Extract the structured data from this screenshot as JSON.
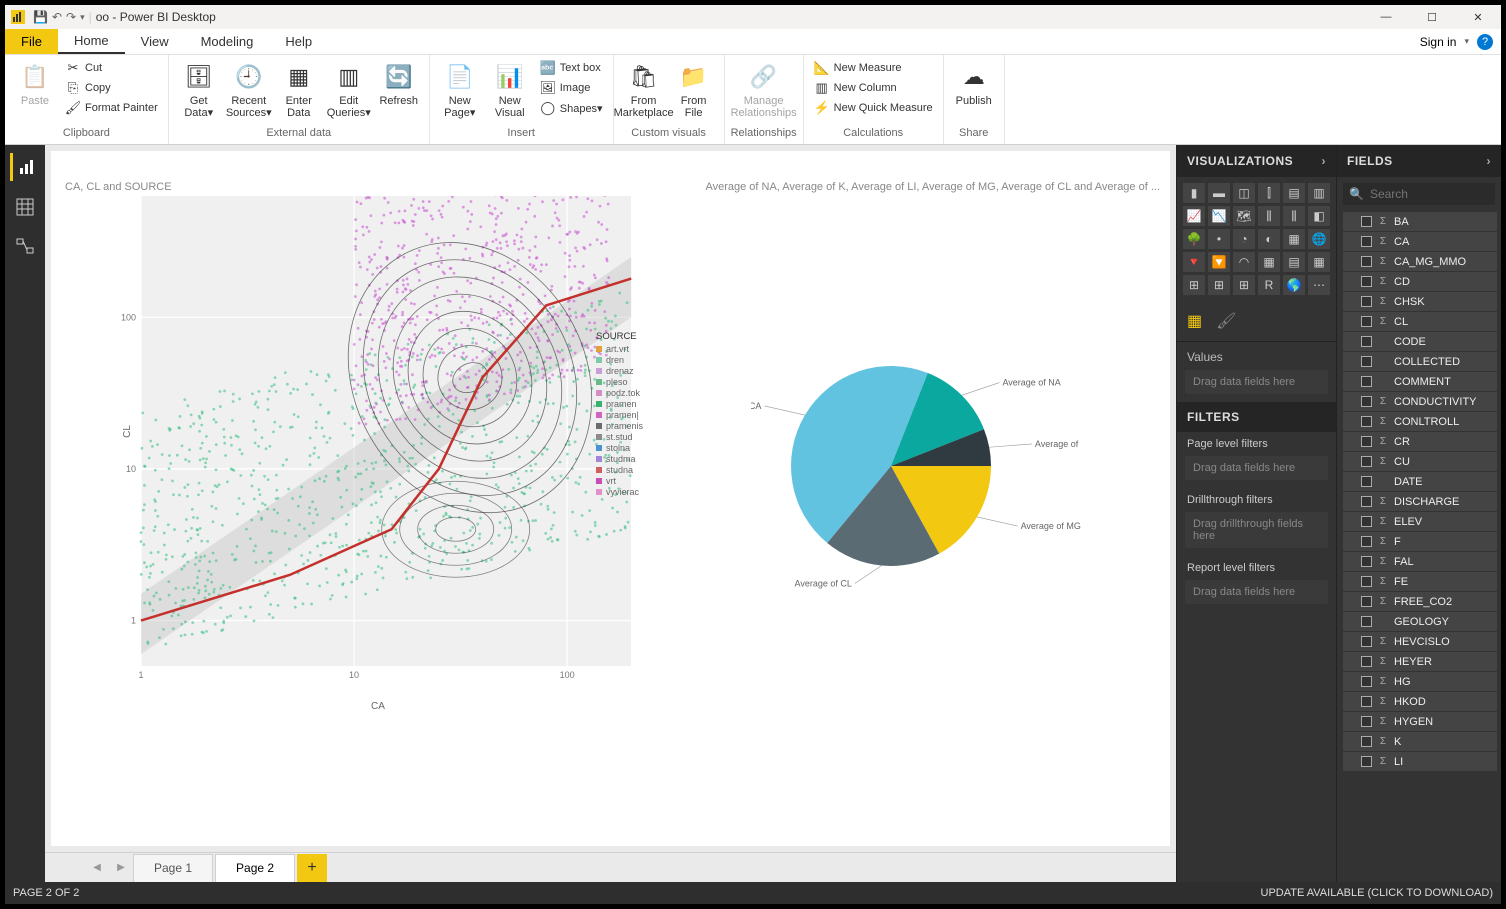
{
  "titlebar": {
    "title": "oo - Power BI Desktop"
  },
  "window_controls": {
    "min": "—",
    "max": "☐",
    "close": "✕"
  },
  "tabs": {
    "file": "File",
    "items": [
      "Home",
      "View",
      "Modeling",
      "Help"
    ],
    "active": "Home",
    "signin": "Sign in"
  },
  "ribbon": {
    "clipboard": {
      "paste": "Paste",
      "cut": "Cut",
      "copy": "Copy",
      "format_painter": "Format Painter",
      "label": "Clipboard"
    },
    "external": {
      "get_data": "Get\nData▾",
      "recent": "Recent\nSources▾",
      "enter": "Enter\nData",
      "edit": "Edit\nQueries▾",
      "refresh": "Refresh",
      "label": "External data"
    },
    "insert": {
      "new_page": "New\nPage▾",
      "new_visual": "New\nVisual",
      "textbox": "Text box",
      "image": "Image",
      "shapes": "Shapes▾",
      "label": "Insert"
    },
    "custom": {
      "marketplace": "From\nMarketplace",
      "file": "From\nFile",
      "label": "Custom visuals"
    },
    "relationships": {
      "manage": "Manage\nRelationships",
      "label": "Relationships"
    },
    "calculations": {
      "new_measure": "New Measure",
      "new_column": "New Column",
      "quick_measure": "New Quick Measure",
      "label": "Calculations"
    },
    "share": {
      "publish": "Publish",
      "label": "Share"
    }
  },
  "canvas": {
    "scatter_title": "CA, CL and SOURCE",
    "pie_title": "Average of NA, Average of K, Average of LI, Average of MG, Average of CL and Average of ...",
    "axis_x": "CA",
    "axis_y": "CL",
    "legend_title": "SOURCE",
    "legend_items": [
      {
        "label": "art.vrt",
        "color": "#e2a23b"
      },
      {
        "label": "dren",
        "color": "#7fc9a9"
      },
      {
        "label": "drenaz",
        "color": "#c99fd6"
      },
      {
        "label": "pleso",
        "color": "#68b88a"
      },
      {
        "label": "podz.tok",
        "color": "#d68fc6"
      },
      {
        "label": "pramen",
        "color": "#37b36f"
      },
      {
        "label": "pramen|",
        "color": "#d064c3"
      },
      {
        "label": "pramenis",
        "color": "#6c6c6c"
      },
      {
        "label": "st.stud",
        "color": "#8b8b8b"
      },
      {
        "label": "stolna",
        "color": "#4a93cf"
      },
      {
        "label": "studma",
        "color": "#a187d6"
      },
      {
        "label": "studna",
        "color": "#d06060"
      },
      {
        "label": "vrt",
        "color": "#c84fb5"
      },
      {
        "label": "vyvierac",
        "color": "#e091c8"
      }
    ],
    "scatter_colors": {
      "cluster_a": "#c84fd1",
      "cluster_b": "#35c082",
      "trend": "#c4302b",
      "contour": "#333333"
    },
    "pie": {
      "slices": [
        {
          "label": "Average of CA",
          "value": 45,
          "color": "#62c3e0"
        },
        {
          "label": "Average of NA",
          "value": 13,
          "color": "#0aa89e"
        },
        {
          "label": "Average of K",
          "value": 6,
          "color": "#2f3b40"
        },
        {
          "label": "Average of MG",
          "value": 17,
          "color": "#f2c811"
        },
        {
          "label": "Average of CL",
          "value": 19,
          "color": "#5b6b73"
        }
      ]
    }
  },
  "page_tabs": {
    "pages": [
      "Page 1",
      "Page 2"
    ],
    "active": "Page 2"
  },
  "viz_pane": {
    "title": "VISUALIZATIONS",
    "values_label": "Values",
    "values_placeholder": "Drag data fields here",
    "filters_title": "FILTERS",
    "page_filters": "Page level filters",
    "page_filters_ph": "Drag data fields here",
    "drill": "Drillthrough filters",
    "drill_ph": "Drag drillthrough fields here",
    "report_filters": "Report level filters",
    "report_filters_ph": "Drag data fields here"
  },
  "fields_pane": {
    "title": "FIELDS",
    "search_placeholder": "Search",
    "items": [
      {
        "name": "BA",
        "sigma": true
      },
      {
        "name": "CA",
        "sigma": true
      },
      {
        "name": "CA_MG_MMO",
        "sigma": true
      },
      {
        "name": "CD",
        "sigma": true
      },
      {
        "name": "CHSK",
        "sigma": true
      },
      {
        "name": "CL",
        "sigma": true
      },
      {
        "name": "CODE",
        "sigma": false
      },
      {
        "name": "COLLECTED",
        "sigma": false
      },
      {
        "name": "COMMENT",
        "sigma": false
      },
      {
        "name": "CONDUCTIVITY",
        "sigma": true
      },
      {
        "name": "CONLTROLL",
        "sigma": true
      },
      {
        "name": "CR",
        "sigma": true
      },
      {
        "name": "CU",
        "sigma": true
      },
      {
        "name": "DATE",
        "sigma": false
      },
      {
        "name": "DISCHARGE",
        "sigma": true
      },
      {
        "name": "ELEV",
        "sigma": true
      },
      {
        "name": "F",
        "sigma": true
      },
      {
        "name": "FAL",
        "sigma": true
      },
      {
        "name": "FE",
        "sigma": true
      },
      {
        "name": "FREE_CO2",
        "sigma": true
      },
      {
        "name": "GEOLOGY",
        "sigma": false
      },
      {
        "name": "HEVCISLO",
        "sigma": true
      },
      {
        "name": "HEYER",
        "sigma": true
      },
      {
        "name": "HG",
        "sigma": true
      },
      {
        "name": "HKOD",
        "sigma": true
      },
      {
        "name": "HYGEN",
        "sigma": true
      },
      {
        "name": "K",
        "sigma": true
      },
      {
        "name": "LI",
        "sigma": true
      }
    ]
  },
  "statusbar": {
    "left": "PAGE 2 OF 2",
    "right": "UPDATE AVAILABLE (CLICK TO DOWNLOAD)"
  }
}
